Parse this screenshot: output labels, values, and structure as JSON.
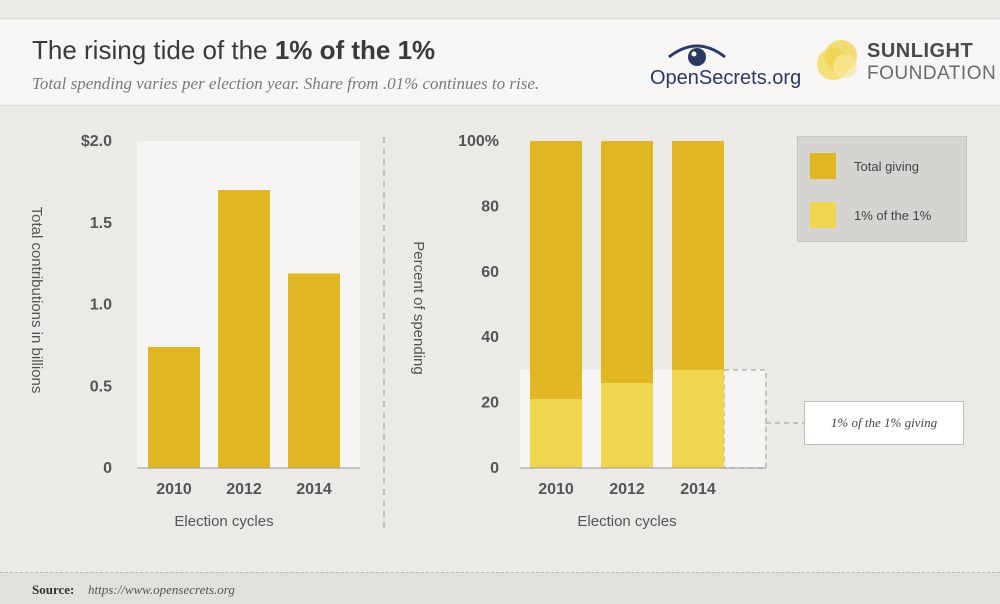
{
  "header": {
    "title_regular": "The rising tide of the ",
    "title_bold": "1% of the 1%",
    "subtitle": "Total spending varies per election year. Share from .01% continues to rise."
  },
  "logos": {
    "opensecrets": "OpenSecrets.org",
    "sunlight_line1": "SUNLIGHT",
    "sunlight_line2": "FOUNDATION"
  },
  "footer": {
    "source_label": "Source:",
    "source_url": "https://www.opensecrets.org"
  },
  "colors": {
    "total_giving": "#e0b722",
    "one_pct": "#f0d650",
    "axis": "#666666"
  },
  "chart_data": [
    {
      "type": "bar",
      "categories": [
        "2010",
        "2012",
        "2014"
      ],
      "values": [
        0.74,
        1.7,
        1.19
      ],
      "xlabel": "Election cycles",
      "ylabel": "Total contributions in billions",
      "ylim": [
        0,
        2.0
      ],
      "yticks": [
        0,
        0.5,
        1.0,
        1.5,
        2.0
      ],
      "ytick_labels": [
        "0",
        "0.5",
        "1.0",
        "1.5",
        "$2.0"
      ]
    },
    {
      "type": "bar",
      "stacked": true,
      "categories": [
        "2010",
        "2012",
        "2014"
      ],
      "series": [
        {
          "name": "1% of the 1%",
          "values": [
            21,
            26,
            30
          ]
        },
        {
          "name": "Total giving",
          "values": [
            79,
            74,
            70
          ]
        }
      ],
      "xlabel": "Election cycles",
      "ylabel": "Percent of spending",
      "ylim": [
        0,
        100
      ],
      "yticks": [
        0,
        20,
        40,
        60,
        80,
        100
      ],
      "ytick_labels": [
        "0",
        "20",
        "40",
        "60",
        "80",
        "100%"
      ],
      "legend": {
        "position": "top-right",
        "items": [
          {
            "label": "Total giving",
            "series": "Total giving"
          },
          {
            "label": "1% of the 1%",
            "series": "1% of the 1%"
          }
        ]
      },
      "annotation": "1% of the 1% giving"
    }
  ]
}
